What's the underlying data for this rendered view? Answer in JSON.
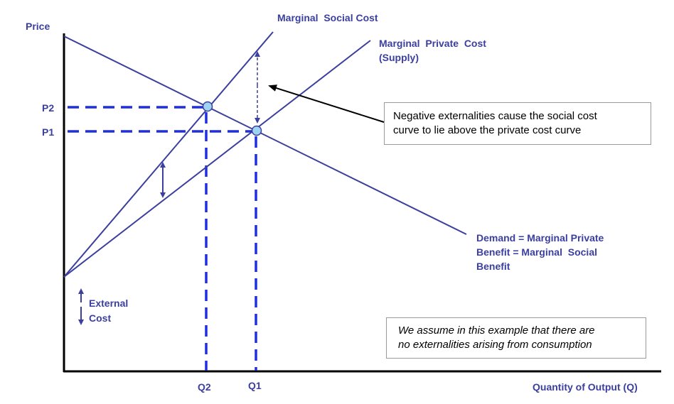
{
  "axes": {
    "y_label": "Price",
    "x_label": "Quantity of Output (Q)"
  },
  "ticks": {
    "p2": "P2",
    "p1": "P1",
    "q2": "Q2",
    "q1": "Q1"
  },
  "curves": {
    "msc": "Marginal  Social Cost",
    "mpc_line1": "Marginal  Private  Cost",
    "mpc_line2": "(Supply)",
    "demand_line1": "Demand = Marginal Private",
    "demand_line2": "Benefit = Marginal  Social",
    "demand_line3": "Benefit"
  },
  "external_cost": {
    "line1": "External",
    "line2": "Cost"
  },
  "notes": {
    "externality_line1": "Negative externalities cause the social cost",
    "externality_line2": "curve to lie above the private cost curve",
    "assumption_line1": "We assume in this example that there are",
    "assumption_line2": "no externalities arising from consumption"
  },
  "colors": {
    "curve": "#3b3f9e",
    "guide_dashes": "#1f2fe0",
    "equilibrium_dot": "#9fd3f2",
    "text": "#3b3f9e",
    "axis": "#000000"
  }
}
